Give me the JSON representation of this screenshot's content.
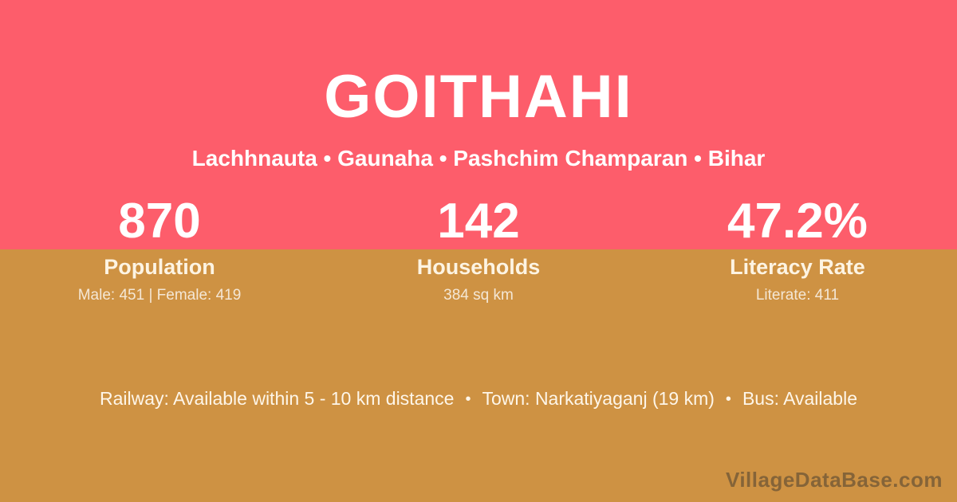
{
  "theme": {
    "top_band_color": "#FD5D6B",
    "bottom_band_color": "#CE9243",
    "primary_text_color": "#FFFFFF",
    "muted_text_color": "#F6E3C4",
    "watermark_color": "#8E8E8E"
  },
  "header": {
    "title": "GOITHAHI",
    "subtitle": "Lachhnauta • Gaunaha • Pashchim Champaran • Bihar"
  },
  "stats": [
    {
      "value": "870",
      "label": "Population",
      "detail": "Male: 451 | Female: 419"
    },
    {
      "value": "142",
      "label": "Households",
      "detail": "384 sq km"
    },
    {
      "value": "47.2%",
      "label": "Literacy Rate",
      "detail": "Literate: 411"
    }
  ],
  "footer": {
    "items": [
      "Railway: Available within 5 - 10 km distance",
      "Town: Narkatiyaganj (19 km)",
      "Bus: Available"
    ],
    "separator": "•"
  },
  "watermark": "VillageDataBase.com"
}
